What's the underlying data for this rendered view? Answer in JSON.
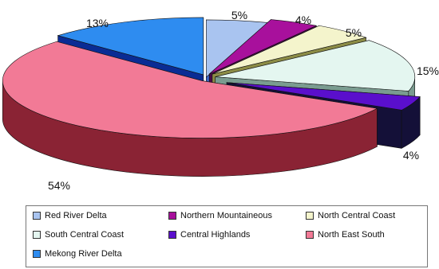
{
  "chart_data": {
    "type": "pie",
    "style": "3d-exploded",
    "title": "",
    "legend_position": "bottom",
    "slices": [
      {
        "label": "Red River Delta",
        "value": 5,
        "value_label": "5%",
        "color": "#a9c4f0",
        "side_color": "#3d64c4"
      },
      {
        "label": "Northern Mountaineous",
        "value": 4,
        "value_label": "4%",
        "color": "#a8109c",
        "side_color": "#4a0a48"
      },
      {
        "label": "North Central Coast",
        "value": 5,
        "value_label": "5%",
        "color": "#f4f4cc",
        "side_color": "#8c8c46"
      },
      {
        "label": "South Central Coast",
        "value": 15,
        "value_label": "15%",
        "color": "#e4f6f0",
        "side_color": "#7a9c90"
      },
      {
        "label": "Central Highlands",
        "value": 4,
        "value_label": "4%",
        "color": "#5a0fcc",
        "side_color": "#141038"
      },
      {
        "label": "North East South",
        "value": 54,
        "value_label": "54%",
        "color": "#f27a96",
        "side_color": "#8a2334"
      },
      {
        "label": "Mekong River Delta",
        "value": 13,
        "value_label": "13%",
        "color": "#2e8cf0",
        "side_color": "#0a2c94"
      }
    ]
  }
}
